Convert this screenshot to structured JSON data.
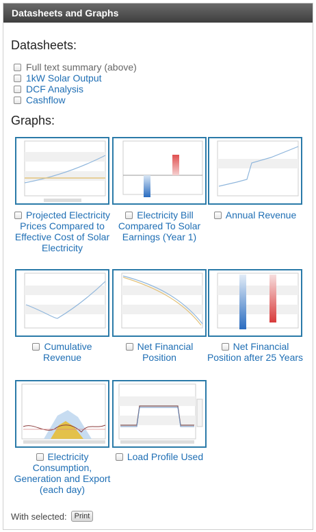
{
  "header": {
    "title": "Datasheets and Graphs"
  },
  "datasheets": {
    "title": "Datasheets:",
    "items": [
      {
        "label": "Full text summary (above)"
      },
      {
        "label": "1kW Solar Output"
      },
      {
        "label": "DCF Analysis"
      },
      {
        "label": "Cashflow"
      }
    ]
  },
  "graphs": {
    "title": "Graphs:",
    "items": [
      {
        "label": "Projected Electricity Prices Compared to Effective Cost of Solar Electricity"
      },
      {
        "label": "Electricity Bill Compared To Solar Earnings (Year 1)"
      },
      {
        "label": "Annual Revenue"
      },
      {
        "label": "Cumulative Revenue"
      },
      {
        "label": "Net Financial Position"
      },
      {
        "label": "Net Financial Position after 25 Years"
      },
      {
        "label": "Electricity Consumption, Generation and Export (each day)"
      },
      {
        "label": "Load Profile Used"
      }
    ]
  },
  "footer": {
    "with_selected": "With selected:",
    "print_label": "Print"
  },
  "colors": {
    "header_bg": "#4a4a4a",
    "link": "#1e6eb4",
    "thumb_border": "#2a7aa8"
  }
}
